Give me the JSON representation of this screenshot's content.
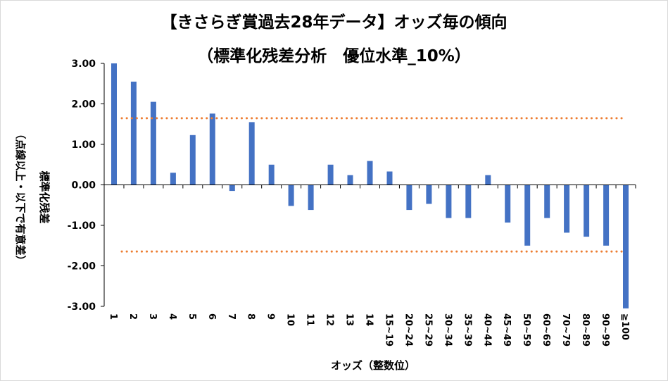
{
  "chart_data": {
    "type": "bar",
    "title": "【きさらぎ賞過去28年データ】オッズ毎の傾向",
    "subtitle": "（標準化残差分析　優位水準_10%）",
    "xlabel": "オッズ（整数位）",
    "ylabel": "標準化残差",
    "ylabel_note": "（点線以上・以下で有意差）",
    "ylim": [
      -3,
      3
    ],
    "yticks": [
      "3.00",
      "2.00",
      "1.00",
      "0.00",
      "-1.00",
      "-2.00",
      "-3.00"
    ],
    "categories": [
      "1",
      "2",
      "3",
      "4",
      "5",
      "6",
      "7",
      "8",
      "9",
      "10",
      "11",
      "12",
      "13",
      "14",
      "15~19",
      "20~24",
      "25~29",
      "30~34",
      "35~39",
      "40~44",
      "45~49",
      "50~59",
      "60~69",
      "70~79",
      "80~89",
      "90~99",
      "≧100"
    ],
    "values": [
      3.0,
      2.55,
      2.05,
      0.3,
      1.23,
      1.76,
      -0.15,
      1.55,
      0.5,
      -0.52,
      -0.62,
      0.5,
      0.24,
      0.59,
      0.33,
      -0.62,
      -0.47,
      -0.82,
      -0.82,
      0.24,
      -0.93,
      -1.5,
      -0.82,
      -1.18,
      -1.28,
      -1.5,
      -3.05
    ],
    "threshold_upper": 1.645,
    "threshold_lower": -1.645,
    "bar_color": "#4472c4",
    "threshold_color": "#ed7d31",
    "grid": false
  }
}
